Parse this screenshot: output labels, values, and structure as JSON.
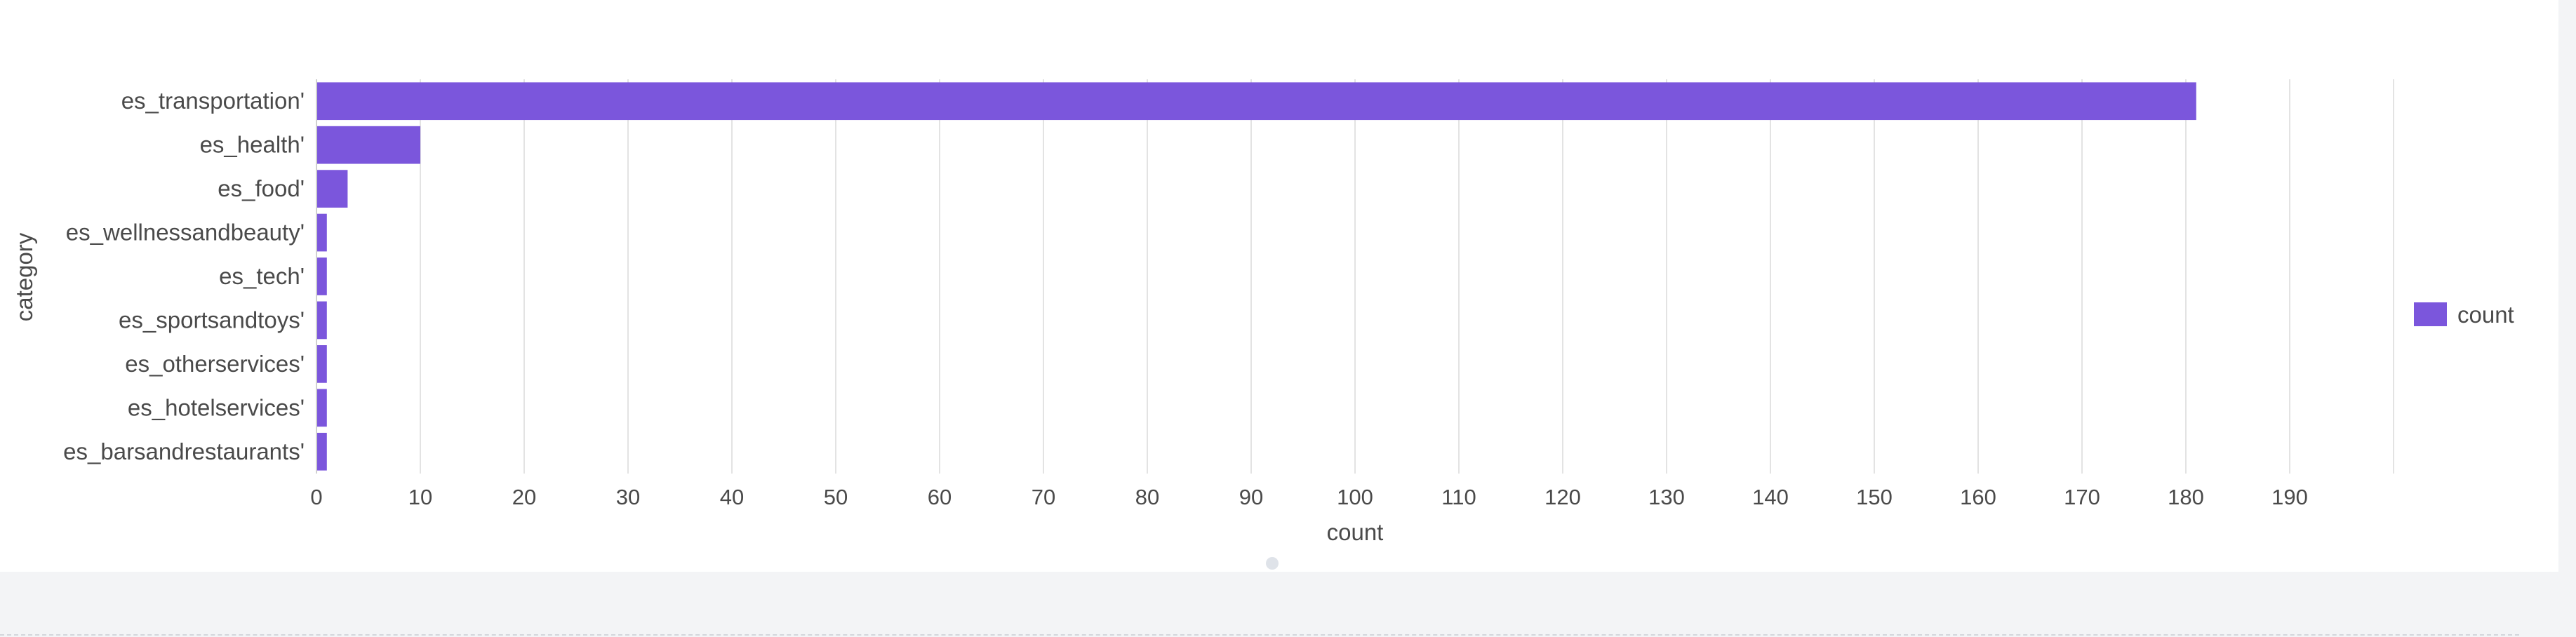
{
  "chart_data": {
    "type": "bar",
    "orientation": "horizontal",
    "categories": [
      "es_transportation'",
      "es_health'",
      "es_food'",
      "es_wellnessandbeauty'",
      "es_tech'",
      "es_sportsandtoys'",
      "es_otherservices'",
      "es_hotelservices'",
      "es_barsandrestaurants'"
    ],
    "series": [
      {
        "name": "count",
        "values": [
          181,
          10,
          3,
          1,
          1,
          1,
          1,
          1,
          1
        ]
      }
    ],
    "xlabel": "count",
    "ylabel": "category",
    "xlim": [
      0,
      200
    ],
    "xticks": [
      0,
      10,
      20,
      30,
      40,
      50,
      60,
      70,
      80,
      90,
      100,
      110,
      120,
      130,
      140,
      150,
      160,
      170,
      180,
      190
    ],
    "grid": true,
    "legend_position": "right",
    "colors": {
      "bar": "#7b56dc",
      "grid": "#e3e3e3",
      "text": "#4a4a4a"
    }
  }
}
